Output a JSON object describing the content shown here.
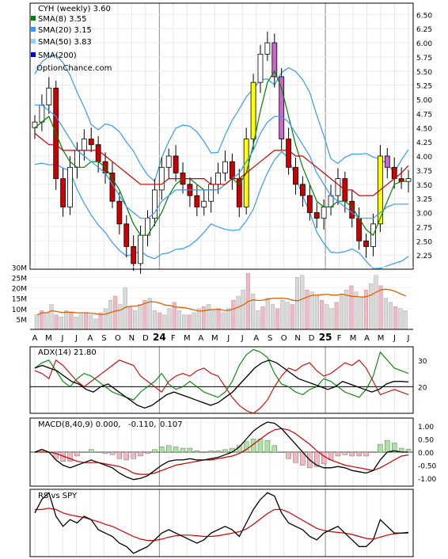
{
  "chart_data": [
    {
      "type": "candlestick",
      "title": "CYH (weekly) 3.60",
      "watermark": "OptionChance.com",
      "legend": [
        {
          "label": "SMA(8) 3.55",
          "color": "#008000"
        },
        {
          "label": "SMA(20) 3.15",
          "color": "#3399ff"
        },
        {
          "label": "SMA(50) 3.83",
          "color": "#99ccff"
        },
        {
          "label": "SMA(200)",
          "color": "#0000cc"
        }
      ],
      "legend_placement": "top-left",
      "ylim": [
        2.0,
        6.7
      ],
      "y_ticks": [
        "6.50",
        "6.25",
        "6.00",
        "5.75",
        "5.50",
        "5.25",
        "5.00",
        "4.75",
        "4.50",
        "4.25",
        "4.00",
        "3.75",
        "3.50",
        "3.25",
        "3.00",
        "2.75",
        "2.50",
        "2.25"
      ],
      "x_ticks": [
        "A",
        "M",
        "J",
        "J",
        "A",
        "S",
        "O",
        "N",
        "D",
        "24",
        "F",
        "M",
        "A",
        "M",
        "J",
        "J",
        "A",
        "S",
        "O",
        "N",
        "D",
        "25",
        "F",
        "M",
        "A",
        "M",
        "J",
        "J"
      ],
      "series": [
        {
          "name": "close",
          "values": [
            4.6,
            4.9,
            5.2,
            3.6,
            3.1,
            3.8,
            4.1,
            4.3,
            4.2,
            3.9,
            3.7,
            3.2,
            2.8,
            2.4,
            2.1,
            2.6,
            2.9,
            3.4,
            3.8,
            4.0,
            3.7,
            3.5,
            3.3,
            3.1,
            3.2,
            3.5,
            3.7,
            3.9,
            3.6,
            3.1,
            4.3,
            5.3,
            5.8,
            6.0,
            5.4,
            4.3,
            3.8,
            3.5,
            3.3,
            3.0,
            2.9,
            3.1,
            3.3,
            3.6,
            3.2,
            2.9,
            2.5,
            2.4,
            2.8,
            4.0,
            3.8,
            3.6,
            3.55,
            3.6
          ]
        },
        {
          "name": "SMA(8)",
          "values": [
            4.5,
            4.6,
            4.7,
            4.4,
            4.1,
            3.9,
            3.8,
            3.8,
            3.9,
            3.9,
            3.8,
            3.6,
            3.4,
            3.1,
            2.8,
            2.6,
            2.6,
            2.8,
            3.0,
            3.3,
            3.5,
            3.6,
            3.6,
            3.5,
            3.4,
            3.4,
            3.4,
            3.5,
            3.6,
            3.5,
            3.7,
            4.2,
            4.8,
            5.3,
            5.5,
            5.2,
            4.7,
            4.2,
            3.8,
            3.5,
            3.2,
            3.1,
            3.1,
            3.2,
            3.2,
            3.1,
            2.9,
            2.7,
            2.6,
            2.9,
            3.2,
            3.5,
            3.55,
            3.55
          ]
        },
        {
          "name": "SMA(20)",
          "values": [
            4.9,
            4.9,
            4.8,
            4.7,
            4.5,
            4.3,
            4.1,
            4.0,
            3.9,
            3.8,
            3.7,
            3.5,
            3.3,
            3.1,
            3.0,
            2.9,
            2.9,
            3.0,
            3.2,
            3.3,
            3.4,
            3.4,
            3.4,
            3.4,
            3.4,
            3.4,
            3.4,
            3.5,
            3.6,
            3.7,
            3.9,
            4.1,
            4.4,
            4.6,
            4.7,
            4.7,
            4.6,
            4.4,
            4.2,
            4.0,
            3.7,
            3.5,
            3.3,
            3.2,
            3.1,
            3.0,
            2.9,
            2.9,
            2.9,
            3.0,
            3.1,
            3.15,
            3.15,
            3.15
          ]
        },
        {
          "name": "SMA(50)",
          "values": [
            4.4,
            4.3,
            4.2,
            4.2,
            4.1,
            4.1,
            4.1,
            4.1,
            4.1,
            4.1,
            4.0,
            3.9,
            3.8,
            3.7,
            3.6,
            3.5,
            3.5,
            3.5,
            3.5,
            3.6,
            3.6,
            3.6,
            3.6,
            3.6,
            3.6,
            3.5,
            3.5,
            3.5,
            3.6,
            3.6,
            3.7,
            3.8,
            3.9,
            4.0,
            4.1,
            4.1,
            4.1,
            4.0,
            4.0,
            3.9,
            3.8,
            3.7,
            3.6,
            3.5,
            3.4,
            3.4,
            3.3,
            3.3,
            3.3,
            3.4,
            3.5,
            3.6,
            3.7,
            3.83
          ]
        }
      ]
    },
    {
      "type": "bar",
      "name": "volume",
      "y_ticks": [
        "30M",
        "25M",
        "20M",
        "15M",
        "10M",
        "5M"
      ],
      "ylim": [
        0,
        32
      ],
      "values": [
        7,
        9,
        8,
        12,
        7,
        6,
        9,
        8,
        6,
        7,
        8,
        7,
        5,
        8,
        10,
        14,
        16,
        12,
        20,
        11,
        9,
        12,
        14,
        15,
        9,
        8,
        7,
        10,
        13,
        9,
        7,
        7,
        8,
        10,
        11,
        12,
        9,
        10,
        8,
        10,
        14,
        16,
        19,
        27,
        17,
        9,
        11,
        15,
        12,
        10,
        14,
        13,
        12,
        25,
        26,
        19,
        18,
        16,
        14,
        12,
        10,
        13,
        17,
        19,
        21,
        18,
        15,
        19,
        22,
        26,
        21,
        15,
        13,
        11,
        10,
        9
      ]
    },
    {
      "type": "line",
      "title": "ADX(14) 21.80",
      "y_ticks": [
        "30",
        "20"
      ],
      "ylim": [
        10,
        35
      ],
      "series": [
        {
          "name": "ADX",
          "color": "#000000",
          "values": [
            27,
            28,
            27,
            26,
            24,
            22,
            21,
            19,
            18,
            20,
            21,
            19,
            17,
            15,
            13,
            12,
            13,
            15,
            17,
            18,
            17,
            16,
            15,
            14,
            13,
            14,
            16,
            18,
            21,
            24,
            27,
            29,
            30,
            29,
            27,
            25,
            23,
            22,
            21,
            20,
            19,
            20,
            22,
            21,
            20,
            19,
            18,
            19,
            21,
            22,
            22,
            21.8
          ]
        },
        {
          "name": "+DI",
          "color": "#008000",
          "values": [
            27,
            29,
            30,
            26,
            22,
            20,
            23,
            25,
            24,
            22,
            20,
            18,
            17,
            16,
            15,
            18,
            20,
            22,
            25,
            21,
            19,
            20,
            22,
            20,
            18,
            17,
            16,
            18,
            22,
            28,
            32,
            34,
            33,
            31,
            25,
            21,
            20,
            18,
            17,
            19,
            20,
            23,
            22,
            20,
            18,
            17,
            16,
            19,
            24,
            33,
            30,
            27,
            26,
            25
          ]
        },
        {
          "name": "-DI",
          "color": "#cc0000",
          "values": [
            26,
            25,
            23,
            30,
            28,
            25,
            22,
            20,
            22,
            24,
            26,
            28,
            30,
            29,
            28,
            24,
            22,
            20,
            18,
            22,
            24,
            25,
            24,
            26,
            27,
            25,
            24,
            20,
            16,
            13,
            11,
            10,
            12,
            15,
            20,
            24,
            27,
            26,
            28,
            29,
            26,
            24,
            25,
            27,
            29,
            28,
            30,
            27,
            22,
            17,
            18,
            19,
            18,
            17
          ]
        }
      ]
    },
    {
      "type": "line",
      "title": "MACD(8,40,9) 0.000,",
      "value_labels": [
        {
          "text": "-0.110,",
          "color": "#cc0000"
        },
        {
          "text": "0.107",
          "color": "#0033cc"
        }
      ],
      "y_ticks": [
        "1.00",
        "0.50",
        "0.00",
        "-0.50",
        "-1.00"
      ],
      "ylim": [
        -1.3,
        1.3
      ],
      "series": [
        {
          "name": "MACD",
          "color": "#000000",
          "values": [
            0.0,
            0.1,
            0.0,
            -0.3,
            -0.5,
            -0.6,
            -0.5,
            -0.4,
            -0.3,
            -0.4,
            -0.5,
            -0.6,
            -0.8,
            -0.95,
            -1.05,
            -1.0,
            -0.9,
            -0.7,
            -0.5,
            -0.35,
            -0.3,
            -0.3,
            -0.25,
            -0.3,
            -0.3,
            -0.25,
            -0.2,
            -0.1,
            0.0,
            0.2,
            0.5,
            0.8,
            1.0,
            1.15,
            1.1,
            0.9,
            0.6,
            0.3,
            0.0,
            -0.3,
            -0.5,
            -0.6,
            -0.6,
            -0.55,
            -0.6,
            -0.7,
            -0.75,
            -0.8,
            -0.7,
            -0.3,
            0.0,
            0.05,
            0.0,
            0.0
          ]
        },
        {
          "name": "Signal",
          "color": "#cc0000",
          "values": [
            0.0,
            0.0,
            0.0,
            -0.05,
            -0.15,
            -0.25,
            -0.35,
            -0.4,
            -0.4,
            -0.4,
            -0.45,
            -0.5,
            -0.55,
            -0.65,
            -0.8,
            -0.85,
            -0.85,
            -0.8,
            -0.7,
            -0.6,
            -0.5,
            -0.45,
            -0.4,
            -0.35,
            -0.3,
            -0.3,
            -0.25,
            -0.2,
            -0.15,
            -0.05,
            0.1,
            0.3,
            0.5,
            0.7,
            0.85,
            0.9,
            0.85,
            0.7,
            0.5,
            0.3,
            0.05,
            -0.15,
            -0.3,
            -0.4,
            -0.5,
            -0.55,
            -0.6,
            -0.65,
            -0.7,
            -0.6,
            -0.45,
            -0.3,
            -0.15,
            -0.11
          ]
        },
        {
          "name": "Histogram",
          "values": [
            0.0,
            0.1,
            0.0,
            -0.25,
            -0.35,
            -0.35,
            -0.15,
            0.0,
            0.1,
            0.0,
            -0.05,
            -0.1,
            -0.25,
            -0.3,
            -0.25,
            -0.15,
            -0.05,
            0.1,
            0.2,
            0.25,
            0.2,
            0.15,
            0.15,
            0.05,
            0.0,
            0.05,
            0.05,
            0.1,
            0.15,
            0.25,
            0.4,
            0.5,
            0.5,
            0.45,
            0.25,
            0.0,
            -0.25,
            -0.4,
            -0.5,
            -0.6,
            -0.55,
            -0.45,
            -0.3,
            -0.15,
            -0.1,
            -0.15,
            -0.15,
            -0.15,
            0.0,
            0.3,
            0.45,
            0.35,
            0.15,
            0.11
          ]
        }
      ]
    },
    {
      "type": "line",
      "title": "RS vs SPY",
      "ylim": [
        0,
        10
      ],
      "series": [
        {
          "name": "RS",
          "color": "#000000",
          "values": [
            6.5,
            8.5,
            9.5,
            6,
            4.5,
            5.5,
            5,
            6,
            5.5,
            4,
            3.5,
            3,
            2,
            1.5,
            0.5,
            1,
            1.5,
            2.5,
            3.5,
            4,
            3.5,
            3,
            2.5,
            2,
            2.5,
            3.5,
            4,
            4.5,
            4,
            3,
            5,
            7,
            8.5,
            9.5,
            9,
            6.5,
            5,
            4.5,
            4,
            3,
            2.5,
            3.5,
            4,
            4.5,
            3.5,
            2.5,
            1.5,
            1.5,
            2.5,
            5.5,
            4.5,
            3.5,
            3.5,
            3.6
          ]
        },
        {
          "name": "RS average",
          "color": "#cc0000",
          "values": [
            7,
            7,
            7.2,
            7,
            6.5,
            6.2,
            6,
            5.8,
            5.5,
            5.2,
            4.8,
            4.5,
            4,
            3.5,
            3,
            2.6,
            2.4,
            2.4,
            2.6,
            2.9,
            3.1,
            3.2,
            3.2,
            3.1,
            3,
            3,
            3.1,
            3.3,
            3.5,
            3.7,
            4.1,
            4.8,
            5.6,
            6.4,
            7,
            7,
            6.6,
            6,
            5.4,
            4.8,
            4.2,
            3.9,
            3.7,
            3.6,
            3.5,
            3.3,
            3,
            2.7,
            2.6,
            2.9,
            3.2,
            3.4,
            3.5,
            3.5
          ]
        }
      ]
    }
  ]
}
